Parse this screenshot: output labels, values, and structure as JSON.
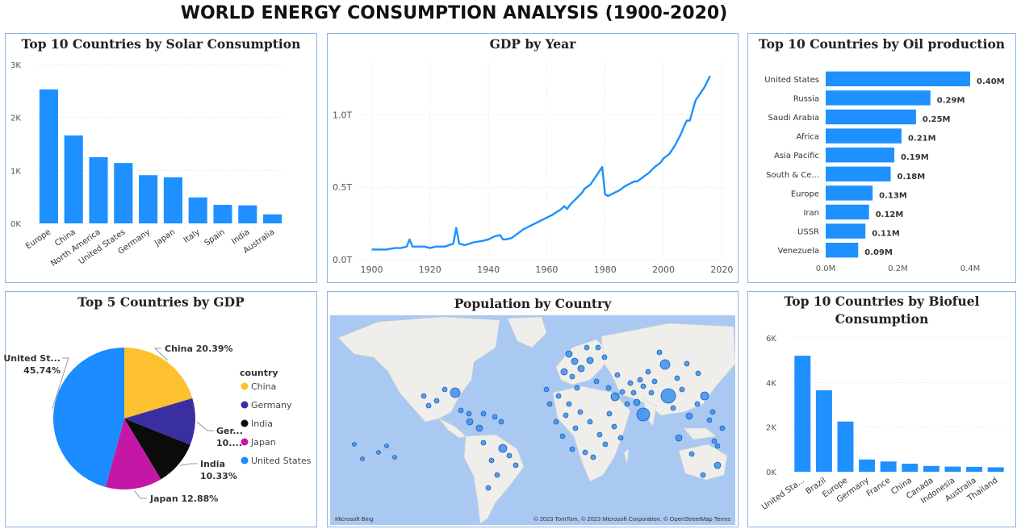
{
  "page": {
    "title": "WORLD ENERGY CONSUMPTION ANALYSIS (1900-2020)"
  },
  "colors": {
    "bar": "#1e90ff",
    "line": "#1e90ff",
    "ocean": "#a9c9f3",
    "land": "#f0eeea",
    "bubble": "#3a8ff0"
  },
  "chart_data": [
    {
      "id": "solar",
      "type": "bar",
      "title": "Top 10 Countries by Solar Consumption",
      "categories": [
        "Europe",
        "China",
        "North America",
        "United States",
        "Germany",
        "Japan",
        "Italy",
        "Spain",
        "India",
        "Australia"
      ],
      "values": [
        2530,
        1660,
        1250,
        1140,
        910,
        870,
        490,
        350,
        340,
        170
      ],
      "ylim": [
        0,
        3000
      ],
      "yticks": [
        {
          "v": 0,
          "label": "0K"
        },
        {
          "v": 1000,
          "label": "1K"
        },
        {
          "v": 2000,
          "label": "2K"
        },
        {
          "v": 3000,
          "label": "3K"
        }
      ],
      "grid": true
    },
    {
      "id": "gdp",
      "type": "line",
      "title": "GDP by Year",
      "x": [
        1900,
        1905,
        1908,
        1910,
        1912,
        1913,
        1914,
        1916,
        1918,
        1920,
        1922,
        1925,
        1928,
        1929,
        1930,
        1932,
        1935,
        1938,
        1940,
        1942,
        1944,
        1945,
        1946,
        1948,
        1950,
        1952,
        1955,
        1958,
        1960,
        1962,
        1965,
        1966,
        1967,
        1968,
        1970,
        1972,
        1973,
        1975,
        1977,
        1979,
        1980,
        1981,
        1982,
        1983,
        1985,
        1987,
        1989,
        1990,
        1991,
        1993,
        1995,
        1997,
        1999,
        2000,
        2002,
        2004,
        2006,
        2007,
        2008,
        2009,
        2010,
        2011,
        2012,
        2014,
        2016
      ],
      "y": [
        0.07,
        0.07,
        0.08,
        0.08,
        0.09,
        0.14,
        0.09,
        0.09,
        0.09,
        0.08,
        0.09,
        0.09,
        0.11,
        0.22,
        0.11,
        0.1,
        0.12,
        0.13,
        0.14,
        0.16,
        0.17,
        0.14,
        0.14,
        0.15,
        0.18,
        0.21,
        0.24,
        0.27,
        0.29,
        0.31,
        0.35,
        0.37,
        0.35,
        0.38,
        0.42,
        0.46,
        0.49,
        0.52,
        0.58,
        0.64,
        0.45,
        0.44,
        0.45,
        0.46,
        0.48,
        0.51,
        0.53,
        0.54,
        0.54,
        0.57,
        0.6,
        0.64,
        0.67,
        0.7,
        0.73,
        0.79,
        0.87,
        0.92,
        0.96,
        0.96,
        1.03,
        1.1,
        1.13,
        1.19,
        1.27
      ],
      "xlim": [
        1896,
        2021
      ],
      "ylim": [
        0,
        1.37
      ],
      "xticks": [
        1900,
        1920,
        1940,
        1960,
        1980,
        2000,
        2020
      ],
      "yticks": [
        {
          "v": 0,
          "label": "0.0T"
        },
        {
          "v": 0.5,
          "label": "0.5T"
        },
        {
          "v": 1.0,
          "label": "1.0T"
        }
      ],
      "grid": true
    },
    {
      "id": "oil",
      "type": "bar",
      "orientation": "horizontal",
      "title": "Top 10 Countries by Oil production",
      "categories": [
        "United States",
        "Russia",
        "Saudi Arabia",
        "Africa",
        "Asia Pacific",
        "South & Ce...",
        "Europe",
        "Iran",
        "USSR",
        "Venezuela"
      ],
      "values": [
        0.4,
        0.29,
        0.25,
        0.21,
        0.19,
        0.18,
        0.13,
        0.12,
        0.11,
        0.09
      ],
      "labels": [
        "0.40M",
        "0.29M",
        "0.25M",
        "0.21M",
        "0.19M",
        "0.18M",
        "0.13M",
        "0.12M",
        "0.11M",
        "0.09M"
      ],
      "xlim": [
        0,
        0.4
      ],
      "xticks": [
        {
          "v": 0,
          "label": "0.0M"
        },
        {
          "v": 0.2,
          "label": "0.2M"
        },
        {
          "v": 0.4,
          "label": "0.4M"
        }
      ]
    },
    {
      "id": "gdp_pie",
      "type": "pie",
      "title": "Top 5 Countries by GDP",
      "legend_title": "country",
      "legend_position": "right",
      "slices": [
        {
          "name": "China",
          "value": 20.39,
          "color": "#fdc02f",
          "label": "China 20.39%"
        },
        {
          "name": "Germany",
          "value": 10.66,
          "color": "#3a2fa0",
          "label": "Ger... 10...."
        },
        {
          "name": "India",
          "value": 10.33,
          "color": "#0b0b0b",
          "label": "India 10.33%"
        },
        {
          "name": "Japan",
          "value": 12.88,
          "color": "#c517a6",
          "label": "Japan 12.88%"
        },
        {
          "name": "United States",
          "value": 45.74,
          "color": "#1a8cff",
          "label": "United St... 45.74%"
        }
      ]
    },
    {
      "id": "population",
      "type": "scatter",
      "title": "Population by Country",
      "map_credit": "© 2023 TomTom, © 2023 Microsoft Corporation, © OpenStreetMap  Terms",
      "map_logo": "Microsoft Bing"
    },
    {
      "id": "biofuel",
      "type": "bar",
      "title": "Top 10 Countries by Biofuel Consumption",
      "categories": [
        "United Sta...",
        "Brazil",
        "Europe",
        "Germany",
        "France",
        "China",
        "Canada",
        "Indonesia",
        "Australia",
        "Thailand"
      ],
      "values": [
        5200,
        3650,
        2250,
        550,
        460,
        360,
        260,
        230,
        220,
        200
      ],
      "ylim": [
        0,
        6000
      ],
      "yticks": [
        {
          "v": 0,
          "label": "0K"
        },
        {
          "v": 2000,
          "label": "2K"
        },
        {
          "v": 4000,
          "label": "4K"
        },
        {
          "v": 6000,
          "label": "6K"
        }
      ],
      "grid": true
    }
  ]
}
